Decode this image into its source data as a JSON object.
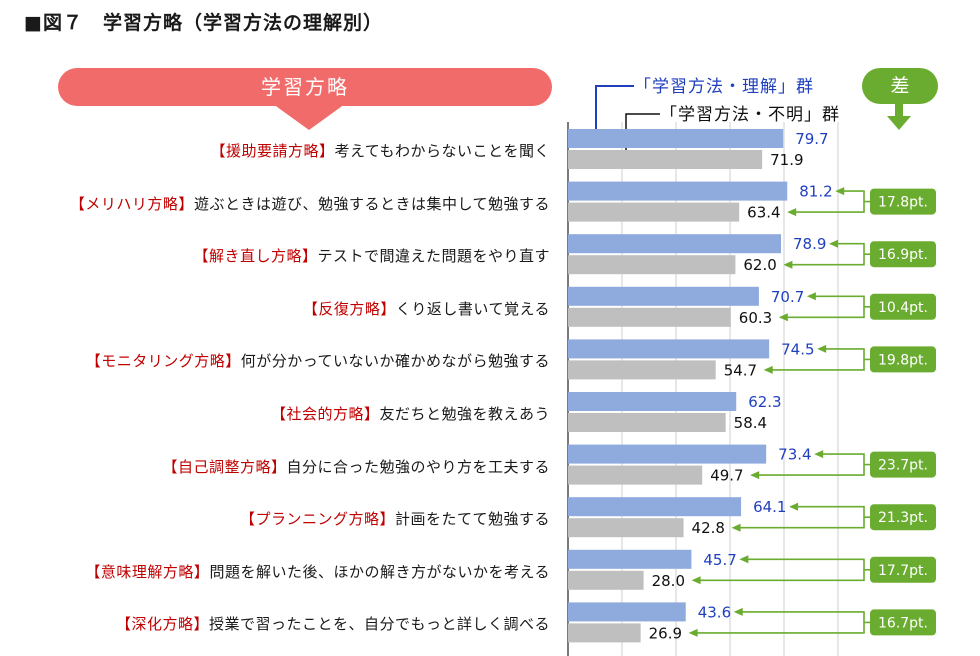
{
  "title": "■図７　学習方略（学習方法の理解別）",
  "banner": "学習方略",
  "legend": {
    "understood": "「学習方法・理解」群",
    "unclear": "「学習方法・不明」群",
    "diff": "差"
  },
  "colors": {
    "understood_bar": "#8faadc",
    "unclear_bar": "#bfbfbf",
    "diff_green": "#6aac2f",
    "banner_red": "#f26b6b",
    "strategy_red": "#c00000",
    "value_blue": "#1f3fbf"
  },
  "chart_data": {
    "type": "bar",
    "orientation": "horizontal",
    "xlim": [
      0,
      100
    ],
    "series": [
      {
        "name": "「学習方法・理解」群",
        "values": [
          79.7,
          81.2,
          78.9,
          70.7,
          74.5,
          62.3,
          73.4,
          64.1,
          45.7,
          43.6
        ]
      },
      {
        "name": "「学習方法・不明」群",
        "values": [
          71.9,
          63.4,
          62.0,
          60.3,
          54.7,
          58.4,
          49.7,
          42.8,
          28.0,
          26.9
        ]
      }
    ],
    "value_labels_understood": [
      "79.7",
      "81.2",
      "78.9",
      "70.7",
      "74.5",
      "62.3",
      "73.4",
      "64.1",
      "45.7",
      "43.6"
    ],
    "value_labels_unclear": [
      "71.9",
      "63.4",
      "62.0",
      "60.3",
      "54.7",
      "58.4",
      "49.7",
      "42.8",
      "28.0",
      "26.9"
    ],
    "categories": [
      {
        "strategy": "【援助要請方略】",
        "desc": "考えてもわからないことを聞く",
        "diff": ""
      },
      {
        "strategy": "【メリハリ方略】",
        "desc": "遊ぶときは遊び、勉強するときは集中して勉強する",
        "diff": "17.8pt."
      },
      {
        "strategy": "【解き直し方略】",
        "desc": "テストで間違えた問題をやり直す",
        "diff": "16.9pt."
      },
      {
        "strategy": "【反復方略】",
        "desc": "くり返し書いて覚える",
        "diff": "10.4pt."
      },
      {
        "strategy": "【モニタリング方略】",
        "desc": "何が分かっていないか確かめながら勉強する",
        "diff": "19.8pt."
      },
      {
        "strategy": "【社会的方略】",
        "desc": "友だちと勉強を教えあう",
        "diff": ""
      },
      {
        "strategy": "【自己調整方略】",
        "desc": "自分に合った勉強のやり方を工夫する",
        "diff": "23.7pt."
      },
      {
        "strategy": "【プランニング方略】",
        "desc": "計画をたてて勉強する",
        "diff": "21.3pt."
      },
      {
        "strategy": "【意味理解方略】",
        "desc": "問題を解いた後、ほかの解き方がないかを考える",
        "diff": "17.7pt."
      },
      {
        "strategy": "【深化方略】",
        "desc": "授業で習ったことを、自分でもっと詳しく調べる",
        "diff": "16.7pt."
      }
    ]
  }
}
